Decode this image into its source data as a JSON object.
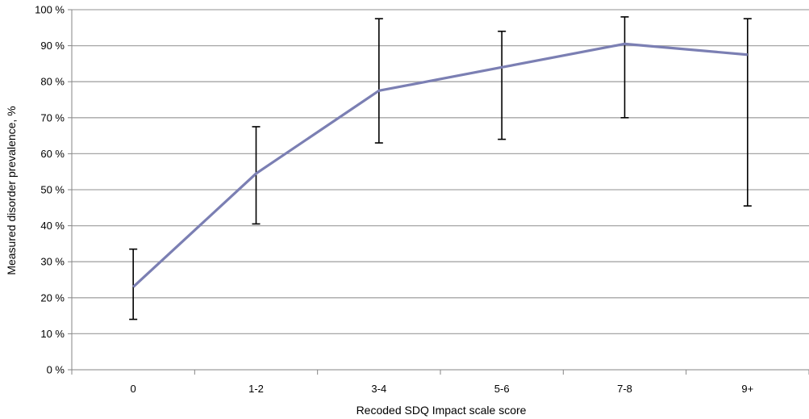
{
  "chart_data": {
    "type": "line",
    "title": "",
    "xlabel": "Recoded SDQ Impact scale score",
    "ylabel": "Measured disorder prevalence, %",
    "categories": [
      "0",
      "1-2",
      "3-4",
      "5-6",
      "7-8",
      "9+"
    ],
    "series": [
      {
        "values": [
          23,
          54.5,
          77.5,
          84,
          90.5,
          87.5
        ],
        "error_low": [
          14,
          40.5,
          63,
          64,
          70,
          45.5
        ],
        "error_high": [
          33.5,
          67.5,
          97.5,
          94,
          98,
          97.5
        ]
      }
    ],
    "ylim": [
      0,
      100
    ],
    "y_ticks": [
      0,
      10,
      20,
      30,
      40,
      50,
      60,
      70,
      80,
      90,
      100
    ],
    "y_tick_labels": [
      "0 %",
      "10 %",
      "20 %",
      "30 %",
      "40 %",
      "50 %",
      "60 %",
      "70 %",
      "80 %",
      "90 %",
      "100 %"
    ],
    "grid": true,
    "legend": "none",
    "colors": {
      "line": "#7b7fb3",
      "error_bar": "#000000",
      "grid": "#a6a6a6",
      "axis": "#868686"
    }
  }
}
